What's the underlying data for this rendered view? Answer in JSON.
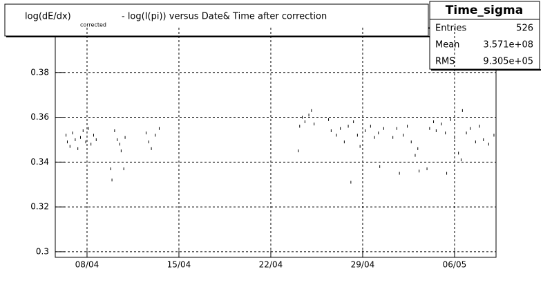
{
  "chart_data": {
    "type": "scatter",
    "title": "log(dE/dx)",
    "title_subscript": "corrected",
    "title_rest": "- log(I(pi)) versus Date& Time after correction",
    "stats": {
      "name": "Time_sigma",
      "rows": [
        [
          "Entries",
          526
        ],
        [
          "Mean",
          "3.571e+08"
        ],
        [
          "RMS",
          "9.305e+05"
        ]
      ]
    },
    "color": "#000000",
    "grid": true,
    "xlim": [
      5.58,
      39.16
    ],
    "ylim": [
      0.2975,
      0.4
    ],
    "xticks": [
      {
        "value": 8,
        "label": "08/04"
      },
      {
        "value": 15,
        "label": "15/04"
      },
      {
        "value": 22,
        "label": "22/04"
      },
      {
        "value": 29,
        "label": "29/04"
      },
      {
        "value": 36,
        "label": "06/05"
      }
    ],
    "yticks": [
      0.3,
      0.32,
      0.34,
      0.36,
      0.38
    ],
    "x": [
      6.4,
      6.5,
      6.7,
      6.9,
      7.1,
      7.3,
      7.5,
      7.7,
      7.9,
      8.1,
      8.3,
      8.5,
      8.7,
      9.8,
      9.9,
      10.1,
      10.3,
      10.5,
      10.6,
      10.8,
      10.9,
      12.5,
      12.7,
      12.9,
      13.2,
      13.5,
      24.1,
      24.2,
      24.4,
      24.6,
      24.9,
      25.1,
      25.3,
      26.4,
      26.6,
      27.0,
      27.3,
      27.6,
      27.9,
      28.1,
      28.3,
      28.6,
      28.8,
      29.2,
      29.6,
      29.9,
      30.2,
      30.3,
      30.6,
      31.3,
      31.6,
      31.8,
      32.1,
      32.4,
      32.7,
      33.0,
      33.2,
      33.3,
      33.9,
      34.1,
      34.4,
      34.6,
      35.0,
      35.3,
      35.4,
      35.7,
      36.0,
      36.3,
      36.5,
      36.6,
      36.9,
      37.2,
      37.6,
      37.9,
      38.2,
      38.6,
      39.0
    ],
    "values": [
      0.352,
      0.349,
      0.347,
      0.353,
      0.35,
      0.346,
      0.351,
      0.354,
      0.349,
      0.355,
      0.348,
      0.352,
      0.35,
      0.337,
      0.332,
      0.354,
      0.35,
      0.348,
      0.345,
      0.337,
      0.351,
      0.353,
      0.349,
      0.346,
      0.352,
      0.355,
      0.345,
      0.356,
      0.36,
      0.358,
      0.361,
      0.363,
      0.357,
      0.359,
      0.354,
      0.352,
      0.355,
      0.349,
      0.356,
      0.331,
      0.358,
      0.352,
      0.347,
      0.354,
      0.356,
      0.351,
      0.353,
      0.338,
      0.355,
      0.351,
      0.355,
      0.335,
      0.352,
      0.356,
      0.349,
      0.343,
      0.346,
      0.336,
      0.337,
      0.355,
      0.358,
      0.354,
      0.357,
      0.353,
      0.335,
      0.359,
      0.351,
      0.344,
      0.341,
      0.363,
      0.353,
      0.355,
      0.349,
      0.356,
      0.35,
      0.348,
      0.352
    ]
  }
}
